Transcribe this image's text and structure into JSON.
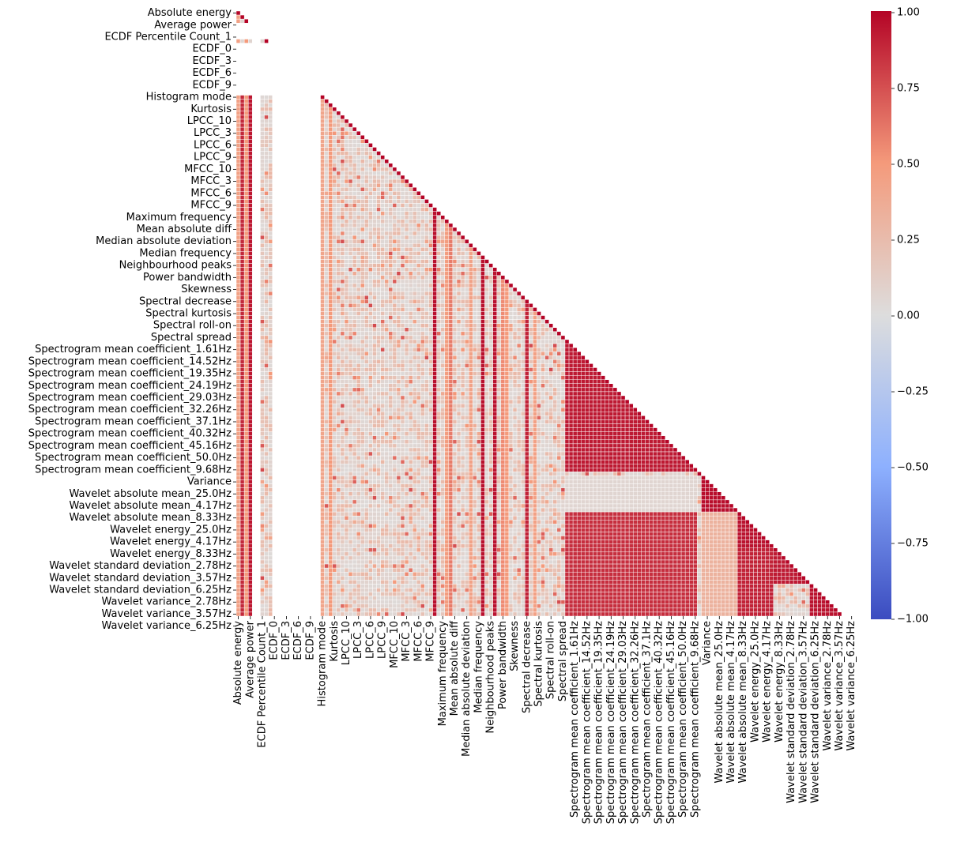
{
  "chart_data": {
    "type": "heatmap",
    "style": "lower-triangle correlation matrix, masked upper triangle, white cell gridlines",
    "colormap": "coolwarm",
    "colormap_stops": [
      "#3b4cc0",
      "#8db0fe",
      "#dddddd",
      "#f49a7b",
      "#b40426"
    ],
    "value_range": [
      -1,
      1
    ],
    "colorbar_ticks": [
      "1.00",
      "0.75",
      "0.50",
      "0.25",
      "0.00",
      "−0.25",
      "−0.50",
      "−0.75",
      "−1.00"
    ],
    "colorbar_tick_values": [
      1.0,
      0.75,
      0.5,
      0.25,
      0.0,
      -0.25,
      -0.5,
      -0.75,
      -1.0
    ],
    "n_features": 151,
    "label_every": 3,
    "tick_labels": [
      "Absolute energy",
      "Average power",
      "ECDF Percentile Count_1",
      "ECDF_0",
      "ECDF_3",
      "ECDF_6",
      "ECDF_9",
      "Histogram mode",
      "Kurtosis",
      "LPCC_10",
      "LPCC_3",
      "LPCC_6",
      "LPCC_9",
      "MFCC_10",
      "MFCC_3",
      "MFCC_6",
      "MFCC_9",
      "Maximum frequency",
      "Mean absolute diff",
      "Median absolute deviation",
      "Median frequency",
      "Neighbourhood peaks",
      "Power bandwidth",
      "Skewness",
      "Spectral decrease",
      "Spectral kurtosis",
      "Spectral roll-on",
      "Spectral spread",
      "Spectrogram mean coefficient_1.61Hz",
      "Spectrogram mean coefficient_14.52Hz",
      "Spectrogram mean coefficient_19.35Hz",
      "Spectrogram mean coefficient_24.19Hz",
      "Spectrogram mean coefficient_29.03Hz",
      "Spectrogram mean coefficient_32.26Hz",
      "Spectrogram mean coefficient_37.1Hz",
      "Spectrogram mean coefficient_40.32Hz",
      "Spectrogram mean coefficient_45.16Hz",
      "Spectrogram mean coefficient_50.0Hz",
      "Spectrogram mean coefficient_9.68Hz",
      "Variance",
      "Wavelet absolute mean_25.0Hz",
      "Wavelet absolute mean_4.17Hz",
      "Wavelet absolute mean_8.33Hz",
      "Wavelet energy_25.0Hz",
      "Wavelet energy_4.17Hz",
      "Wavelet energy_8.33Hz",
      "Wavelet standard deviation_2.78Hz",
      "Wavelet standard deviation_3.57Hz",
      "Wavelet standard deviation_6.25Hz",
      "Wavelet variance_2.78Hz",
      "Wavelet variance_3.57Hz",
      "Wavelet variance_6.25Hz"
    ],
    "blocks": [
      {
        "name": "Spectrogram mean coefficient",
        "range": [
          82,
          114
        ],
        "within_corr": 0.93
      },
      {
        "name": "Wavelet absolute mean",
        "range": [
          116,
          124
        ],
        "within_corr": 0.97
      },
      {
        "name": "Wavelet energy",
        "range": [
          125,
          133
        ],
        "within_corr": 0.95
      },
      {
        "name": "Wavelet standard deviation",
        "range": [
          134,
          142
        ],
        "within_corr": 0.93
      },
      {
        "name": "Wavelet variance",
        "range": [
          143,
          151
        ],
        "within_corr": 0.95
      }
    ],
    "cross_block_corr": [
      {
        "rows": [
          125,
          151
        ],
        "cols": [
          82,
          114
        ],
        "value": 0.86
      },
      {
        "rows": [
          116,
          124
        ],
        "cols": [
          82,
          114
        ],
        "value": 0.06
      },
      {
        "rows": [
          125,
          151
        ],
        "cols": [
          116,
          124
        ],
        "value": 0.32
      },
      {
        "rows": [
          134,
          151
        ],
        "cols": [
          125,
          133
        ],
        "value": 0.9
      }
    ],
    "strong_columns": [
      {
        "col": 1,
        "value": 0.88
      },
      {
        "col": 3,
        "value": 0.94
      },
      {
        "col": 49,
        "value": 0.96
      },
      {
        "col": 61,
        "value": 0.96
      },
      {
        "col": 64,
        "value": 0.95
      },
      {
        "col": 72,
        "value": 0.9
      }
    ],
    "moderate_columns": [
      {
        "col": 0,
        "value": 0.45
      },
      {
        "col": 2,
        "value": 0.5
      },
      {
        "col": 21,
        "value": 0.42
      },
      {
        "col": 23,
        "value": 0.5
      },
      {
        "col": 52,
        "value": 0.48
      },
      {
        "col": 53,
        "value": 0.6
      },
      {
        "col": 58,
        "value": 0.44
      },
      {
        "col": 66,
        "value": 0.55
      },
      {
        "col": 67,
        "value": 0.5
      },
      {
        "col": 74,
        "value": 0.45
      }
    ],
    "empty_columns": [
      [
        4,
        5
      ],
      [
        9,
        20
      ]
    ],
    "empty_rows": [
      [
        3,
        6
      ],
      [
        8,
        20
      ]
    ]
  }
}
